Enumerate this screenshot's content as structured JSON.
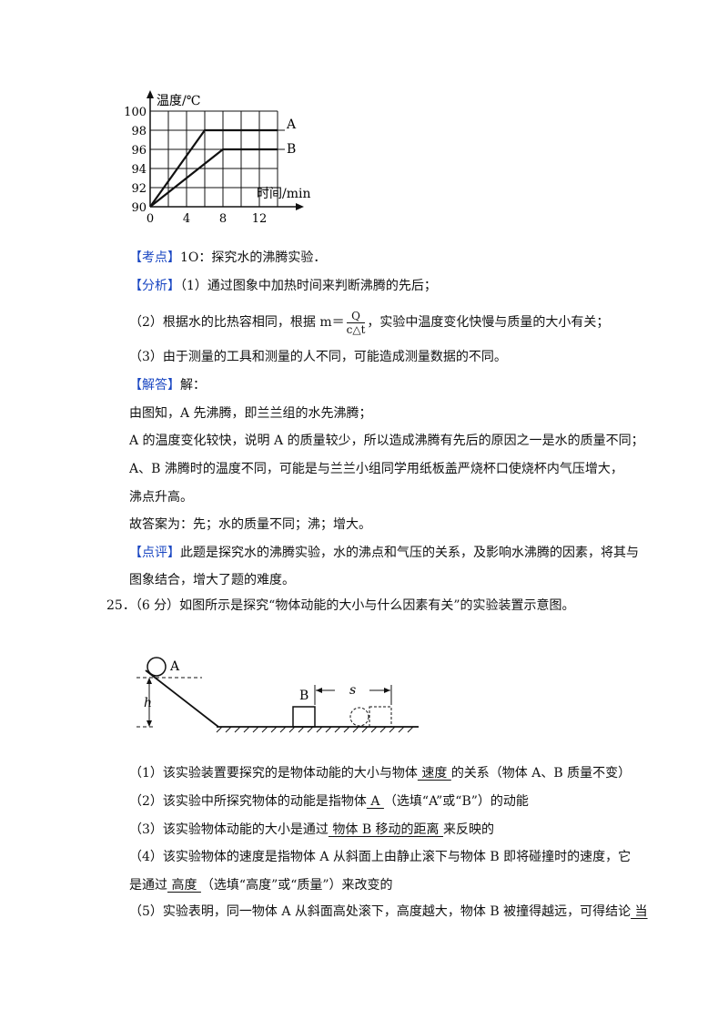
{
  "chart_data": {
    "type": "line",
    "ylabel": "温度/℃",
    "xlabel": "时间/min",
    "xlim": [
      0,
      16
    ],
    "ylim": [
      90,
      100
    ],
    "xticks": [
      "0",
      "4",
      "8",
      "12"
    ],
    "yticks": [
      "90",
      "92",
      "94",
      "96",
      "98",
      "100"
    ],
    "series": [
      {
        "name": "A",
        "x": [
          0,
          6,
          14
        ],
        "y": [
          90,
          98,
          98
        ]
      },
      {
        "name": "B",
        "x": [
          0,
          8,
          14
        ],
        "y": [
          90,
          96,
          96
        ]
      }
    ]
  },
  "solution": {
    "kaodian_tag": "【考点】",
    "kaodian_text": "1O：探究水的沸腾实验．",
    "fenxi_tag": "【分析】",
    "fenxi_1": "（1）通过图象中加热时间来判断沸腾的先后；",
    "fenxi_2_a": "（2）根据水的比热容相同，根据 m＝",
    "fenxi_2_num": "Q",
    "fenxi_2_den": "c△t",
    "fenxi_2_b": "，实验中温度变化快慢与质量的大小有关；",
    "fenxi_3": "（3）由于测量的工具和测量的人不同，可能造成测量数据的不同。",
    "jieda_tag": "【解答】",
    "jieda_text": "解：",
    "line_1": "由图知，A 先沸腾，即兰兰组的水先沸腾；",
    "line_2": "A 的温度变化较快，说明 A 的质量较少，所以造成沸腾有先后的原因之一是水的质量不同；",
    "line_3": "A、B 沸腾时的温度不同，可能是与兰兰小组同学用纸板盖严烧杯口使烧杯内气压增大，",
    "line_4": "沸点升高。",
    "line_5": "故答案为：先；水的质量不同；沸；增大。",
    "dianping_tag": "【点评】",
    "dianping_1": "此题是探究水的沸腾实验，水的沸点和气压的关系，及影响水沸腾的因素，将其与",
    "dianping_2": "图象结合，增大了题的难度。"
  },
  "question25": {
    "stem": "25．（6 分）如图所示是探究“物体动能的大小与什么因素有关”的实验装置示意图。",
    "diagram": {
      "label_a": "A",
      "label_b": "B",
      "label_h": "h",
      "label_s": "s"
    },
    "q1_a": "（1）该实验装置要探究的是物体动能的大小与物体",
    "q1_ans": "   速度   ",
    "q1_b": "的关系（物体 A、B 质量不变）",
    "q2_a": "（2）该实验中所探究物体的动能是指物体",
    "q2_ans": "   A   ",
    "q2_b": "（选填“A”或“B”）的动能",
    "q3_a": "（3）该实验物体动能的大小是通过",
    "q3_ans": "   物体 B 移动的距离   ",
    "q3_b": "来反映的",
    "q4_a": "（4）该实验物体的速度是指物体 A 从斜面上由静止滚下与物体 B 即将碰撞时的速度，它",
    "q4_b": "是通过",
    "q4_ans": "   高度   ",
    "q4_c": "（选填“高度”或“质量”）来改变的",
    "q5_a": "（5）实验表明，同一物体 A 从斜面高处滚下，高度越大，物体 B 被撞得越远，可得结论",
    "q5_ans": "   当"
  }
}
